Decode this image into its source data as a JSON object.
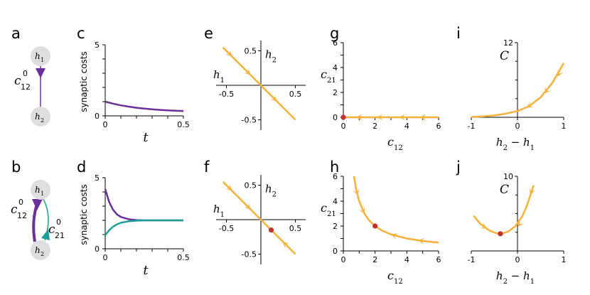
{
  "colors": {
    "purple": "#6b2f9a",
    "teal": "#1a9e96",
    "orange": "#f5b13a",
    "red": "#c0302e",
    "node": "#dedede"
  },
  "labels": {
    "a": "a",
    "b": "b",
    "c": "c",
    "d": "d",
    "e": "e",
    "f": "f",
    "g": "g",
    "h": "h",
    "i": "i",
    "j": "j"
  },
  "network_a": {
    "h1": "h",
    "h1_sub": "1",
    "h2": "h",
    "h2_sub": "2",
    "c12": "c",
    "c12_sub": "12",
    "c12_sup": "0"
  },
  "network_b": {
    "h1": "h",
    "h1_sub": "1",
    "h2": "h",
    "h2_sub": "2",
    "c12": "c",
    "c12_sub": "12",
    "c12_sup": "0",
    "c21": "c",
    "c21_sub": "21",
    "c21_sup": "0"
  },
  "chart_data": [
    {
      "panel": "c",
      "type": "line",
      "ylabel": "synaptic costs",
      "xlabel": "t",
      "xticks": [
        "0",
        "0.5"
      ],
      "xlim": [
        0,
        0.5
      ],
      "ylim": [
        0,
        5
      ],
      "yticks": [
        "0",
        "5"
      ],
      "series": [
        {
          "color": "purple",
          "x": [
            0,
            0.05,
            0.1,
            0.15,
            0.2,
            0.25,
            0.3,
            0.35,
            0.4,
            0.45,
            0.5
          ],
          "y": [
            1.0,
            0.86,
            0.74,
            0.65,
            0.57,
            0.51,
            0.46,
            0.42,
            0.39,
            0.36,
            0.34
          ]
        }
      ]
    },
    {
      "panel": "d",
      "type": "line",
      "ylabel": "synaptic costs",
      "xlabel": "t",
      "xticks": [
        "0",
        "0.5"
      ],
      "xlim": [
        0,
        0.5
      ],
      "ylim": [
        0,
        5
      ],
      "yticks": [
        "0",
        "5"
      ],
      "series": [
        {
          "color": "purple",
          "x": [
            0,
            0.025,
            0.05,
            0.075,
            0.1,
            0.15,
            0.2,
            0.25,
            0.3,
            0.4,
            0.5
          ],
          "y": [
            4.2,
            3.3,
            2.75,
            2.42,
            2.24,
            2.08,
            2.02,
            2.0,
            2.0,
            2.0,
            2.0
          ]
        },
        {
          "color": "teal",
          "x": [
            0,
            0.025,
            0.05,
            0.075,
            0.1,
            0.15,
            0.2,
            0.25,
            0.3,
            0.4,
            0.5
          ],
          "y": [
            0.95,
            1.3,
            1.55,
            1.72,
            1.83,
            1.94,
            1.98,
            2.0,
            2.0,
            2.0,
            2.0
          ]
        }
      ]
    },
    {
      "panel": "e",
      "type": "line",
      "xlabel": "h1",
      "ylabel": "h2",
      "xticks": [
        "-0.5",
        "0.5"
      ],
      "yticks": [
        "0.5",
        "-0.5"
      ],
      "xlim": [
        -0.65,
        0.65
      ],
      "ylim": [
        -0.65,
        0.65
      ],
      "series": [
        {
          "color": "orange",
          "x": [
            -0.55,
            0.5
          ],
          "y": [
            0.55,
            -0.5
          ]
        }
      ]
    },
    {
      "panel": "f",
      "type": "line",
      "xlabel": "h1",
      "ylabel": "h2",
      "xticks": [
        "-0.5",
        "0.5"
      ],
      "yticks": [
        "0.5",
        "-0.5"
      ],
      "xlim": [
        -0.65,
        0.65
      ],
      "ylim": [
        -0.65,
        0.65
      ],
      "series": [
        {
          "color": "orange",
          "x": [
            -0.55,
            0.5
          ],
          "y": [
            0.55,
            -0.5
          ]
        }
      ],
      "fixed_point": [
        0.15,
        -0.15
      ]
    },
    {
      "panel": "g",
      "type": "line",
      "xlabel": "c12",
      "ylabel": "c21",
      "xlim": [
        0,
        6
      ],
      "ylim": [
        0,
        6
      ],
      "xticks": [
        "0",
        "2",
        "4",
        "6"
      ],
      "yticks": [
        "0",
        "2",
        "4",
        "6"
      ],
      "series": [
        {
          "color": "orange",
          "x": [
            0,
            6
          ],
          "y": [
            0,
            0
          ]
        }
      ],
      "fixed_point": [
        0,
        0
      ]
    },
    {
      "panel": "h",
      "type": "line",
      "xlabel": "c12",
      "ylabel": "c21",
      "xlim": [
        0,
        6
      ],
      "ylim": [
        0,
        6
      ],
      "xticks": [
        "0",
        "2",
        "4",
        "6"
      ],
      "yticks": [
        "0",
        "2",
        "4",
        "6"
      ],
      "series": [
        {
          "color": "orange",
          "x": [
            0.67,
            0.8,
            1.0,
            1.33,
            1.6,
            2.0,
            2.5,
            3.0,
            4.0,
            5.0,
            6.0
          ],
          "y": [
            6.0,
            5.0,
            4.0,
            3.0,
            2.5,
            2.0,
            1.6,
            1.33,
            1.0,
            0.8,
            0.67
          ]
        }
      ],
      "fixed_point": [
        2,
        2
      ]
    },
    {
      "panel": "i",
      "type": "line",
      "xlabel": "h2 − h1",
      "ylabel": "C",
      "xlim": [
        -1,
        1
      ],
      "ylim": [
        0,
        12
      ],
      "xticks": [
        "-1",
        "0",
        "1"
      ],
      "yticks": [
        "12"
      ],
      "series": [
        {
          "color": "orange",
          "x": [
            -1,
            -0.75,
            -0.5,
            -0.25,
            0,
            0.25,
            0.5,
            0.75,
            1.0
          ],
          "y": [
            0.05,
            0.15,
            0.3,
            0.6,
            1.0,
            1.8,
            3.2,
            5.5,
            8.7
          ]
        }
      ]
    },
    {
      "panel": "j",
      "type": "line",
      "xlabel": "h2 − h1",
      "ylabel": "C",
      "xlim": [
        -1,
        1
      ],
      "ylim": [
        0,
        10
      ],
      "xticks": [
        "-1",
        "0",
        "1"
      ],
      "yticks": [
        "10"
      ],
      "series": [
        {
          "color": "orange",
          "x": [
            -0.95,
            -0.8,
            -0.6,
            -0.45,
            -0.35,
            -0.2,
            -0.05,
            0.1,
            0.2,
            0.35
          ],
          "y": [
            4.7,
            3.6,
            2.7,
            2.35,
            2.3,
            2.6,
            3.3,
            4.6,
            6.0,
            8.8
          ]
        }
      ],
      "fixed_point": [
        -0.37,
        2.3
      ]
    }
  ]
}
